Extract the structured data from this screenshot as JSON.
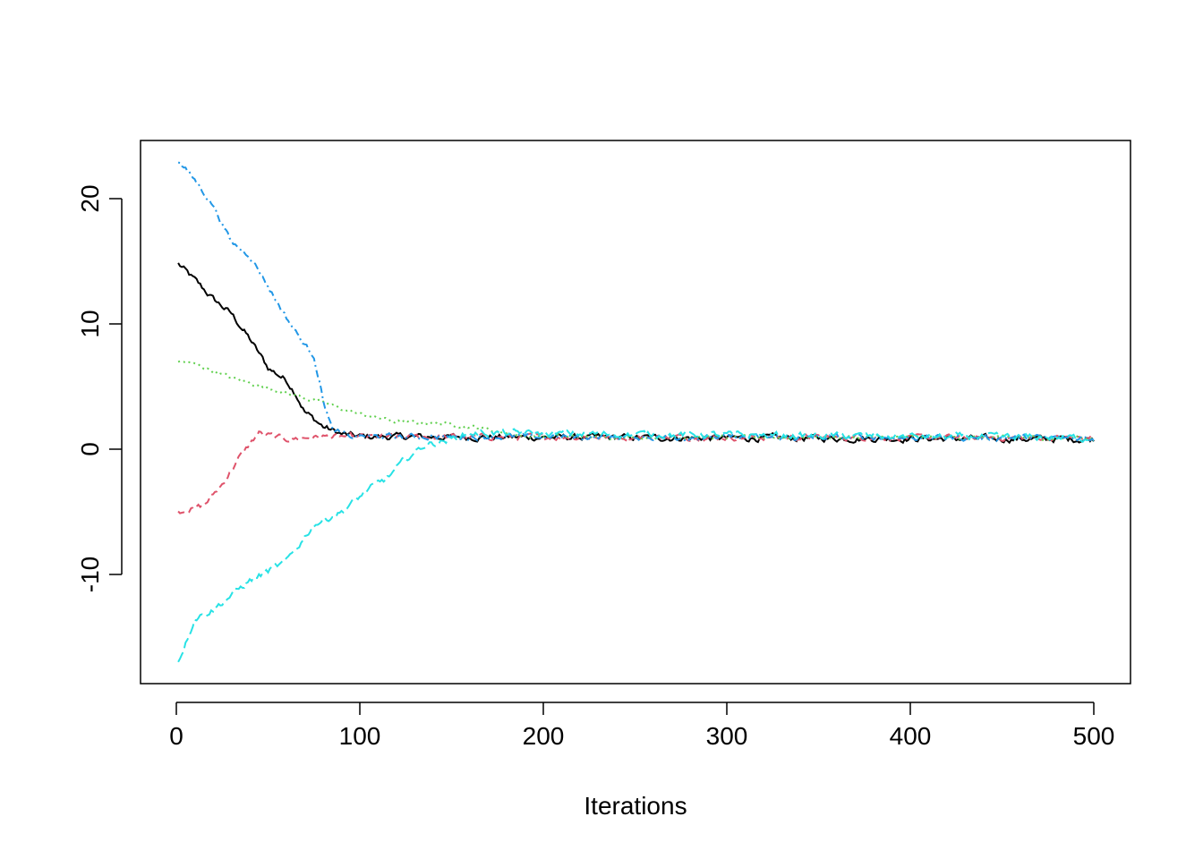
{
  "chart_data": {
    "type": "line",
    "title": "",
    "xlabel": "Iterations",
    "ylabel": "",
    "xlim": [
      -9,
      520
    ],
    "ylim": [
      -18.7,
      24.6
    ],
    "x_ticks": [
      0,
      100,
      200,
      300,
      400,
      500
    ],
    "y_ticks": [
      -10,
      0,
      10,
      20
    ],
    "grid": false,
    "legend": "none",
    "iterations": 500,
    "series": [
      {
        "color": "#000000",
        "dash": "solid",
        "keypoints": [
          [
            1,
            14.8
          ],
          [
            10,
            13.5
          ],
          [
            20,
            12.0
          ],
          [
            30,
            10.8
          ],
          [
            40,
            8.8
          ],
          [
            50,
            6.5
          ],
          [
            60,
            5.5
          ],
          [
            65,
            4.5
          ],
          [
            70,
            3.0
          ],
          [
            80,
            1.8
          ],
          [
            90,
            1.2
          ],
          [
            100,
            1.0
          ],
          [
            500,
            0.8
          ]
        ],
        "noise": 0.35
      },
      {
        "color": "#DF536B",
        "dash": "dashed",
        "keypoints": [
          [
            1,
            -5.0
          ],
          [
            15,
            -4.5
          ],
          [
            25,
            -2.8
          ],
          [
            35,
            -0.5
          ],
          [
            45,
            1.3
          ],
          [
            60,
            0.8
          ],
          [
            80,
            1.0
          ],
          [
            500,
            0.9
          ]
        ],
        "noise": 0.3
      },
      {
        "color": "#61D04F",
        "dash": "dotted",
        "keypoints": [
          [
            1,
            7.0
          ],
          [
            10,
            6.8
          ],
          [
            30,
            5.7
          ],
          [
            60,
            4.5
          ],
          [
            80,
            3.7
          ],
          [
            100,
            2.8
          ],
          [
            120,
            2.2
          ],
          [
            150,
            2.0
          ],
          [
            170,
            1.6
          ],
          [
            190,
            1.0
          ],
          [
            500,
            0.9
          ]
        ],
        "noise": 0.2
      },
      {
        "color": "#2297E6",
        "dash": "dotdash",
        "keypoints": [
          [
            1,
            23.0
          ],
          [
            10,
            21.5
          ],
          [
            20,
            19.5
          ],
          [
            30,
            16.5
          ],
          [
            40,
            15.5
          ],
          [
            50,
            13.0
          ],
          [
            60,
            10.5
          ],
          [
            70,
            8.3
          ],
          [
            75,
            7.5
          ],
          [
            80,
            4.0
          ],
          [
            85,
            1.5
          ],
          [
            95,
            1.0
          ],
          [
            500,
            0.9
          ]
        ],
        "noise": 0.3
      },
      {
        "color": "#28E2E5",
        "dash": "longdash",
        "keypoints": [
          [
            1,
            -17.0
          ],
          [
            10,
            -13.5
          ],
          [
            20,
            -12.8
          ],
          [
            40,
            -10.5
          ],
          [
            60,
            -9.0
          ],
          [
            75,
            -6.0
          ],
          [
            90,
            -5.0
          ],
          [
            105,
            -3.2
          ],
          [
            115,
            -2.3
          ],
          [
            125,
            -0.8
          ],
          [
            135,
            0.3
          ],
          [
            150,
            0.8
          ],
          [
            160,
            1.3
          ],
          [
            500,
            0.9
          ]
        ],
        "noise": 0.35
      }
    ]
  }
}
